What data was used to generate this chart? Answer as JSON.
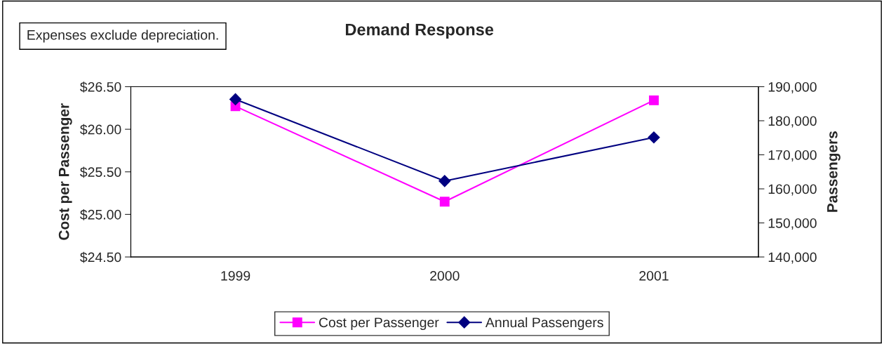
{
  "chart_data": {
    "type": "line",
    "title": "Demand Response",
    "categories": [
      "1999",
      "2000",
      "2001"
    ],
    "ylabel": "Cost per Passenger",
    "y2label": "Passengers",
    "ylim": [
      24.5,
      26.5
    ],
    "yticks": [
      {
        "value": 24.5,
        "label": "$24.50"
      },
      {
        "value": 25.0,
        "label": "$25.00"
      },
      {
        "value": 25.5,
        "label": "$25.50"
      },
      {
        "value": 26.0,
        "label": "$26.00"
      },
      {
        "value": 26.5,
        "label": "$26.50"
      }
    ],
    "y2lim": [
      140000,
      190000
    ],
    "y2ticks": [
      {
        "value": 140000,
        "label": "140,000"
      },
      {
        "value": 150000,
        "label": "150,000"
      },
      {
        "value": 160000,
        "label": "160,000"
      },
      {
        "value": 170000,
        "label": "170,000"
      },
      {
        "value": 180000,
        "label": "180,000"
      },
      {
        "value": 190000,
        "label": "190,000"
      }
    ],
    "series": [
      {
        "name": "Cost per Passenger",
        "color": "#ff00ff",
        "marker": "square",
        "values": [
          26.27,
          25.15,
          26.34
        ]
      },
      {
        "name": "Annual Passengers",
        "color": "#000080",
        "marker": "diamond",
        "axis": "y2",
        "values": [
          186300,
          162300,
          175100
        ]
      }
    ],
    "annotations": [
      "Expenses exclude depreciation."
    ],
    "legend": "bottom",
    "grid": false
  }
}
